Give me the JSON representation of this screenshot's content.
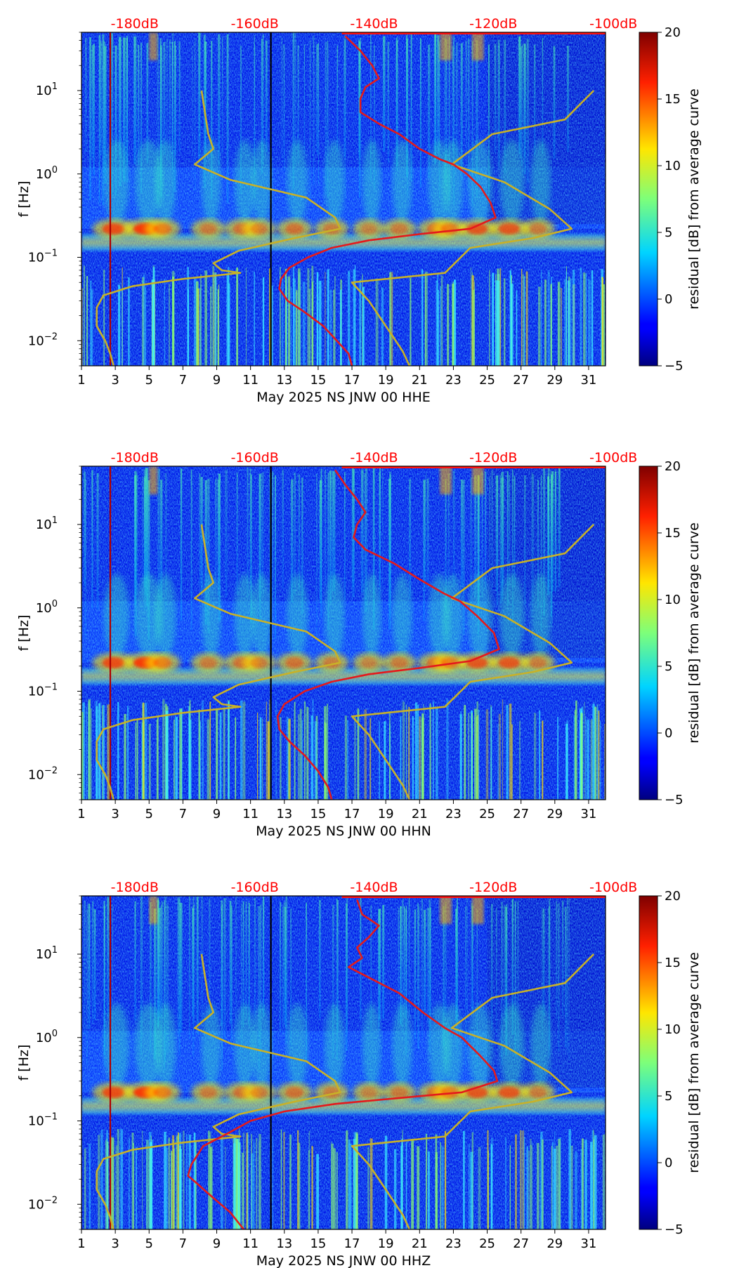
{
  "chart_data": [
    {
      "type": "heatmap",
      "panel": "HHE",
      "xlabel": "May 2025 NS JNW 00 HHE",
      "ylabel": "f [Hz]",
      "colorbar_label": "residual [dB] from average curve",
      "clim": [
        -5,
        20
      ],
      "colorbar_ticks": [
        "20",
        "15",
        "10",
        "5",
        "0",
        "−5"
      ],
      "x_ticks": [
        "1",
        "3",
        "5",
        "7",
        "9",
        "11",
        "13",
        "15",
        "17",
        "19",
        "21",
        "23",
        "25",
        "27",
        "29",
        "31"
      ],
      "x_range": [
        1,
        32
      ],
      "y_range": [
        0.005,
        50
      ],
      "y_ticks": [
        {
          "base": "10",
          "exp": "1"
        },
        {
          "base": "10",
          "exp": "0"
        },
        {
          "base": "10",
          "exp": "−1"
        },
        {
          "base": "10",
          "exp": "−2"
        }
      ],
      "db_labels": [
        "-180dB",
        "-160dB",
        "-140dB",
        "-120dB",
        "-100dB"
      ],
      "noise_curve_red": [
        [
          16.6,
          45
        ],
        [
          17.5,
          30
        ],
        [
          18.2,
          20
        ],
        [
          18.6,
          14
        ],
        [
          17.8,
          11
        ],
        [
          17.5,
          8
        ],
        [
          17.5,
          5.5
        ],
        [
          18.6,
          4
        ],
        [
          19.8,
          3
        ],
        [
          21.0,
          2.0
        ],
        [
          22.2,
          1.5
        ],
        [
          23.0,
          1.3
        ],
        [
          23.8,
          1.0
        ],
        [
          24.6,
          0.7
        ],
        [
          25.2,
          0.45
        ],
        [
          25.5,
          0.3
        ],
        [
          24.0,
          0.22
        ],
        [
          21.0,
          0.19
        ],
        [
          18.0,
          0.16
        ],
        [
          15.8,
          0.13
        ],
        [
          14.4,
          0.1
        ],
        [
          13.3,
          0.075
        ],
        [
          12.8,
          0.055
        ],
        [
          12.7,
          0.042
        ],
        [
          13.2,
          0.03
        ],
        [
          14.2,
          0.022
        ],
        [
          15.3,
          0.015
        ],
        [
          16.1,
          0.01
        ],
        [
          16.8,
          0.007
        ],
        [
          17.0,
          0.005
        ]
      ],
      "peterson_noise_model": [
        [
          8.1,
          10
        ],
        [
          8.5,
          3
        ],
        [
          8.8,
          2
        ],
        [
          7.7,
          1.3
        ],
        [
          9.8,
          0.85
        ],
        [
          14.3,
          0.52
        ],
        [
          16.0,
          0.3
        ],
        [
          16.3,
          0.22
        ],
        [
          13.6,
          0.17
        ],
        [
          10.3,
          0.12
        ],
        [
          8.8,
          0.085
        ],
        [
          9.3,
          0.07
        ],
        [
          10.4,
          0.065
        ],
        [
          7.0,
          0.055
        ],
        [
          4.0,
          0.045
        ],
        [
          2.3,
          0.035
        ],
        [
          1.9,
          0.025
        ],
        [
          1.9,
          0.015
        ],
        [
          2.4,
          0.01
        ],
        [
          2.7,
          0.007
        ],
        [
          2.9,
          0.005
        ]
      ],
      "low_noise_model": [
        [
          31.3,
          10
        ],
        [
          29.6,
          4.5
        ],
        [
          25.3,
          3.0
        ],
        [
          22.9,
          1.3
        ],
        [
          26.0,
          0.8
        ],
        [
          28.7,
          0.38
        ],
        [
          30.0,
          0.22
        ],
        [
          27.7,
          0.17
        ],
        [
          24.0,
          0.13
        ],
        [
          22.5,
          0.065
        ],
        [
          17.0,
          0.05
        ],
        [
          18.0,
          0.03
        ],
        [
          19.0,
          0.015
        ],
        [
          20.0,
          0.0075
        ],
        [
          20.4,
          0.005
        ]
      ]
    },
    {
      "type": "heatmap",
      "panel": "HHN",
      "xlabel": "May 2025 NS JNW 00 HHN",
      "ylabel": "f [Hz]",
      "colorbar_label": "residual [dB] from average curve",
      "clim": [
        -5,
        20
      ],
      "colorbar_ticks": [
        "20",
        "15",
        "10",
        "5",
        "0",
        "−5"
      ],
      "x_ticks": [
        "1",
        "3",
        "5",
        "7",
        "9",
        "11",
        "13",
        "15",
        "17",
        "19",
        "21",
        "23",
        "25",
        "27",
        "29",
        "31"
      ],
      "x_range": [
        1,
        32
      ],
      "y_range": [
        0.005,
        50
      ],
      "y_ticks": [
        {
          "base": "10",
          "exp": "1"
        },
        {
          "base": "10",
          "exp": "0"
        },
        {
          "base": "10",
          "exp": "−1"
        },
        {
          "base": "10",
          "exp": "−2"
        }
      ],
      "db_labels": [
        "-180dB",
        "-160dB",
        "-140dB",
        "-120dB",
        "-100dB"
      ],
      "noise_curve_red": [
        [
          16.0,
          45
        ],
        [
          16.6,
          30
        ],
        [
          17.3,
          20
        ],
        [
          17.8,
          14
        ],
        [
          17.3,
          10
        ],
        [
          17.1,
          7
        ],
        [
          17.8,
          5
        ],
        [
          19.5,
          3.4
        ],
        [
          21.0,
          2.2
        ],
        [
          22.4,
          1.5
        ],
        [
          23.4,
          1.2
        ],
        [
          24.4,
          0.8
        ],
        [
          25.4,
          0.5
        ],
        [
          25.7,
          0.32
        ],
        [
          24.0,
          0.23
        ],
        [
          21.0,
          0.19
        ],
        [
          18.0,
          0.16
        ],
        [
          15.8,
          0.13
        ],
        [
          14.2,
          0.1
        ],
        [
          13.0,
          0.07
        ],
        [
          12.6,
          0.05
        ],
        [
          12.7,
          0.035
        ],
        [
          13.3,
          0.025
        ],
        [
          14.2,
          0.017
        ],
        [
          15.0,
          0.011
        ],
        [
          15.6,
          0.007
        ],
        [
          15.8,
          0.005
        ]
      ],
      "peterson_noise_model": [
        [
          8.1,
          10
        ],
        [
          8.5,
          3
        ],
        [
          8.8,
          2
        ],
        [
          7.7,
          1.3
        ],
        [
          9.8,
          0.85
        ],
        [
          14.3,
          0.52
        ],
        [
          16.0,
          0.3
        ],
        [
          16.3,
          0.22
        ],
        [
          13.6,
          0.17
        ],
        [
          10.3,
          0.12
        ],
        [
          8.8,
          0.085
        ],
        [
          9.3,
          0.07
        ],
        [
          10.4,
          0.065
        ],
        [
          7.0,
          0.055
        ],
        [
          4.0,
          0.045
        ],
        [
          2.3,
          0.035
        ],
        [
          1.9,
          0.025
        ],
        [
          1.9,
          0.015
        ],
        [
          2.4,
          0.01
        ],
        [
          2.7,
          0.007
        ],
        [
          2.9,
          0.005
        ]
      ],
      "low_noise_model": [
        [
          31.3,
          10
        ],
        [
          29.6,
          4.5
        ],
        [
          25.3,
          3.0
        ],
        [
          22.9,
          1.3
        ],
        [
          26.0,
          0.8
        ],
        [
          28.7,
          0.38
        ],
        [
          30.0,
          0.22
        ],
        [
          27.7,
          0.17
        ],
        [
          24.0,
          0.13
        ],
        [
          22.5,
          0.065
        ],
        [
          17.0,
          0.05
        ],
        [
          18.0,
          0.03
        ],
        [
          19.0,
          0.015
        ],
        [
          20.0,
          0.0075
        ],
        [
          20.4,
          0.005
        ]
      ]
    },
    {
      "type": "heatmap",
      "panel": "HHZ",
      "xlabel": "May 2025 NS JNW 00 HHZ",
      "ylabel": "f [Hz]",
      "colorbar_label": "residual [dB] from average curve",
      "clim": [
        -5,
        20
      ],
      "colorbar_ticks": [
        "20",
        "15",
        "10",
        "5",
        "0",
        "−5"
      ],
      "x_ticks": [
        "1",
        "3",
        "5",
        "7",
        "9",
        "11",
        "13",
        "15",
        "17",
        "19",
        "21",
        "23",
        "25",
        "27",
        "29",
        "31"
      ],
      "x_range": [
        1,
        32
      ],
      "y_range": [
        0.005,
        50
      ],
      "y_ticks": [
        {
          "base": "10",
          "exp": "1"
        },
        {
          "base": "10",
          "exp": "0"
        },
        {
          "base": "10",
          "exp": "−1"
        },
        {
          "base": "10",
          "exp": "−2"
        }
      ],
      "db_labels": [
        "-180dB",
        "-160dB",
        "-140dB",
        "-120dB",
        "-100dB"
      ],
      "noise_curve_red": [
        [
          17.3,
          45
        ],
        [
          17.6,
          30
        ],
        [
          18.6,
          22
        ],
        [
          18.0,
          16
        ],
        [
          17.3,
          12
        ],
        [
          17.6,
          9
        ],
        [
          16.8,
          7
        ],
        [
          18.2,
          5
        ],
        [
          19.8,
          3.4
        ],
        [
          21.2,
          2.0
        ],
        [
          22.5,
          1.3
        ],
        [
          23.5,
          1.0
        ],
        [
          24.6,
          0.6
        ],
        [
          25.4,
          0.4
        ],
        [
          25.6,
          0.3
        ],
        [
          23.5,
          0.22
        ],
        [
          20.0,
          0.19
        ],
        [
          16.0,
          0.16
        ],
        [
          13.0,
          0.13
        ],
        [
          11.0,
          0.1
        ],
        [
          9.6,
          0.07
        ],
        [
          8.2,
          0.05
        ],
        [
          7.5,
          0.03
        ],
        [
          7.3,
          0.022
        ],
        [
          7.8,
          0.018
        ],
        [
          8.4,
          0.014
        ],
        [
          9.0,
          0.011
        ],
        [
          9.8,
          0.008
        ],
        [
          10.6,
          0.005
        ]
      ],
      "peterson_noise_model": [
        [
          8.1,
          10
        ],
        [
          8.5,
          3
        ],
        [
          8.8,
          2
        ],
        [
          7.7,
          1.3
        ],
        [
          9.8,
          0.85
        ],
        [
          14.3,
          0.52
        ],
        [
          16.0,
          0.3
        ],
        [
          16.3,
          0.22
        ],
        [
          13.6,
          0.17
        ],
        [
          10.3,
          0.12
        ],
        [
          8.8,
          0.085
        ],
        [
          9.3,
          0.07
        ],
        [
          10.4,
          0.065
        ],
        [
          7.0,
          0.055
        ],
        [
          4.0,
          0.045
        ],
        [
          2.3,
          0.035
        ],
        [
          1.9,
          0.025
        ],
        [
          1.9,
          0.015
        ],
        [
          2.4,
          0.01
        ],
        [
          2.7,
          0.007
        ],
        [
          2.9,
          0.005
        ]
      ],
      "low_noise_model": [
        [
          31.3,
          10
        ],
        [
          29.6,
          4.5
        ],
        [
          25.3,
          3.0
        ],
        [
          22.9,
          1.3
        ],
        [
          26.0,
          0.8
        ],
        [
          28.7,
          0.38
        ],
        [
          30.0,
          0.22
        ],
        [
          27.7,
          0.17
        ],
        [
          24.0,
          0.13
        ],
        [
          22.5,
          0.065
        ],
        [
          17.0,
          0.05
        ],
        [
          18.0,
          0.03
        ],
        [
          19.0,
          0.015
        ],
        [
          20.0,
          0.0075
        ],
        [
          20.4,
          0.005
        ]
      ]
    }
  ],
  "colors": {
    "noise_curve": "#e41a1c",
    "model_curve": "#c8b128",
    "db_label": "#ff0000",
    "jet_low": "#00007f",
    "jet_high": "#7f0000"
  }
}
